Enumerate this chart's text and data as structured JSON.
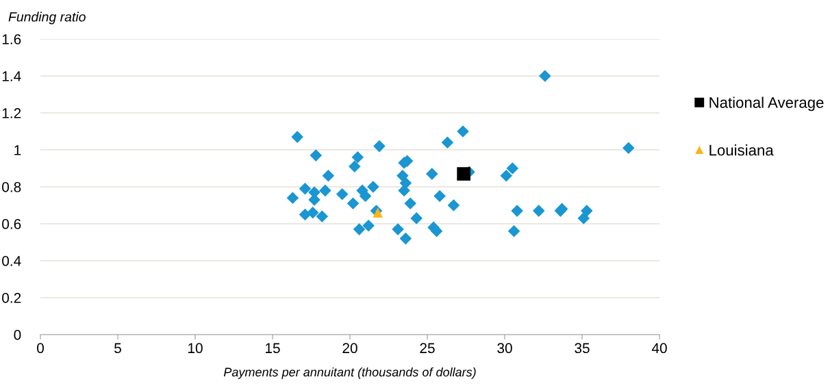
{
  "chart_data": {
    "type": "scatter",
    "ylabel": "Funding ratio",
    "xlabel": "Payments per annuitant (thousands of dollars)",
    "xlim": [
      0,
      40
    ],
    "xticks": [
      0,
      5,
      10,
      15,
      20,
      25,
      30,
      35,
      40
    ],
    "ylim": [
      0,
      1.6
    ],
    "yticks": [
      0,
      0.2,
      0.4,
      0.6,
      0.8,
      1,
      1.2,
      1.4,
      1.6
    ],
    "grid": "y",
    "legend": "right",
    "series": [
      {
        "color": "#1a96d2",
        "marker": "diamond",
        "x": [
          16.3,
          16.6,
          17.1,
          17.1,
          17.7,
          17.7,
          17.6,
          17.8,
          18.2,
          18.4,
          18.6,
          19.5,
          20.2,
          20.3,
          20.5,
          20.6,
          20.8,
          21.0,
          21.2,
          21.5,
          21.7,
          21.9,
          23.1,
          23.4,
          23.5,
          23.7,
          23.5,
          23.6,
          23.6,
          23.9,
          24.3,
          25.3,
          25.4,
          25.6,
          25.8,
          26.3,
          26.7,
          27.3,
          27.7,
          30.1,
          30.5,
          30.8,
          30.6,
          32.2,
          32.6,
          33.6,
          33.7,
          35.1,
          35.3,
          38.0
        ],
        "values": [
          0.74,
          1.07,
          0.79,
          0.65,
          0.77,
          0.73,
          0.66,
          0.97,
          0.64,
          0.78,
          0.86,
          0.76,
          0.71,
          0.91,
          0.96,
          0.57,
          0.78,
          0.75,
          0.59,
          0.8,
          0.67,
          1.02,
          0.57,
          0.86,
          0.93,
          0.94,
          0.78,
          0.82,
          0.52,
          0.71,
          0.63,
          0.87,
          0.58,
          0.56,
          0.75,
          1.04,
          0.7,
          1.1,
          0.88,
          0.86,
          0.9,
          0.67,
          0.56,
          0.67,
          1.4,
          0.67,
          0.68,
          0.63,
          0.67,
          1.01
        ]
      },
      {
        "name": "National Average",
        "color": "#000000",
        "marker": "square",
        "x": [
          27.35
        ],
        "values": [
          0.87
        ]
      },
      {
        "name": "Louisiana",
        "color": "#fbb515",
        "marker": "triangle",
        "x": [
          21.8
        ],
        "values": [
          0.66
        ]
      }
    ]
  }
}
